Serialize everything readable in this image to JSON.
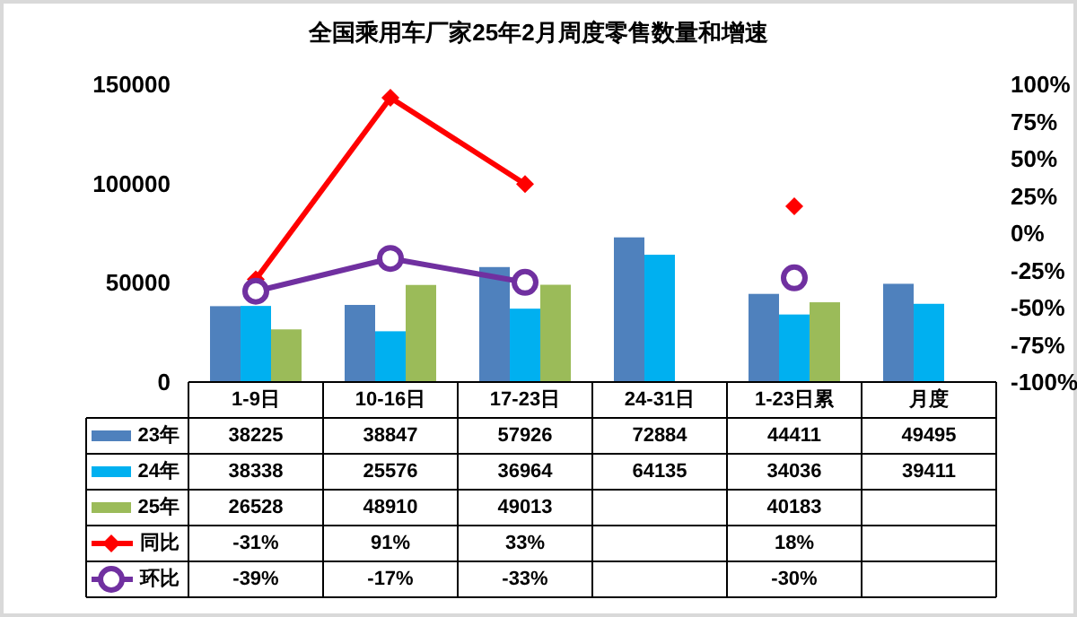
{
  "chart_data": {
    "type": "bar",
    "title": "全国乘用车厂家25年2月周度零售数量和增速",
    "categories": [
      "1-9日",
      "10-16日",
      "17-23日",
      "24-31日",
      "1-23日累",
      "月度"
    ],
    "series": [
      {
        "name": "23年",
        "color": "#4f81bd",
        "values": [
          38225,
          38847,
          57926,
          72884,
          44411,
          49495
        ]
      },
      {
        "name": "24年",
        "color": "#00b0f0",
        "values": [
          38338,
          25576,
          36964,
          64135,
          34036,
          39411
        ]
      },
      {
        "name": "25年",
        "color": "#9bbb59",
        "values": [
          26528,
          48910,
          49013,
          null,
          40183,
          null
        ]
      },
      {
        "name": "同比",
        "type": "line",
        "axis": "y2",
        "marker": "diamond",
        "color": "#ff0000",
        "values": [
          -31,
          91,
          33,
          null,
          18,
          null
        ],
        "value_labels": [
          "-31%",
          "91%",
          "33%",
          null,
          "18%",
          null
        ]
      },
      {
        "name": "环比",
        "type": "line",
        "axis": "y2",
        "marker": "circle",
        "color": "#7030a0",
        "values": [
          -39,
          -17,
          -33,
          null,
          -30,
          null
        ],
        "value_labels": [
          "-39%",
          "-17%",
          "-33%",
          null,
          "-30%",
          null
        ]
      }
    ],
    "ylim": [
      0,
      150000
    ],
    "yticks": [
      0,
      50000,
      100000,
      150000
    ],
    "y2lim": [
      -100,
      100
    ],
    "y2ticks": [
      {
        "value": -100,
        "label": "-100%"
      },
      {
        "value": -75,
        "label": "-75%"
      },
      {
        "value": -50,
        "label": "-50%"
      },
      {
        "value": -25,
        "label": "-25%"
      },
      {
        "value": 0,
        "label": "0%"
      },
      {
        "value": 25,
        "label": "25%"
      },
      {
        "value": 50,
        "label": "50%"
      },
      {
        "value": 75,
        "label": "75%"
      },
      {
        "value": 100,
        "label": "100%"
      }
    ],
    "data_labels": true,
    "legend": "bottom",
    "grid": false
  }
}
